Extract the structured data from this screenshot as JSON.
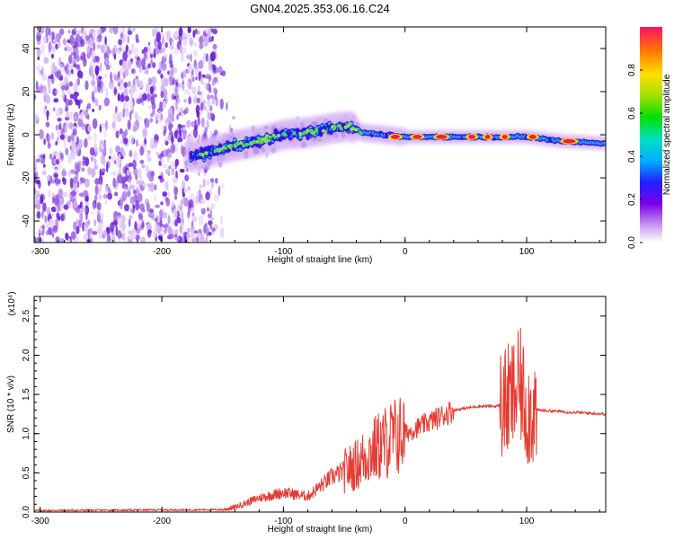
{
  "title": "GN04.2025.353.06.16.C24",
  "chart_data": [
    {
      "type": "heatmap",
      "name": "spectrogram",
      "xlabel": "Height of straight line (km)",
      "ylabel": "Frequency (Hz)",
      "xlim": [
        -305,
        165
      ],
      "ylim": [
        -50,
        50
      ],
      "xticks": [
        -300,
        -200,
        -100,
        0,
        100
      ],
      "yticks": [
        -40,
        -20,
        0,
        20,
        40
      ],
      "ridge": {
        "x": [
          -175,
          -160,
          -140,
          -120,
          -100,
          -80,
          -60,
          -45,
          -35,
          0,
          40,
          80,
          100,
          130,
          165
        ],
        "y": [
          -10,
          -8,
          -5,
          -3,
          0,
          1,
          3,
          4,
          1,
          -1,
          -1,
          -1,
          -1,
          -3,
          -4
        ]
      },
      "noise_region": [
        -305,
        -155
      ],
      "colorbar": {
        "label": "Normalized spectral amplitude",
        "ticks": [
          "0.0",
          "0.2",
          "0.4",
          "0.6",
          "0.8"
        ],
        "range": [
          0,
          1
        ]
      }
    },
    {
      "type": "line",
      "name": "snr",
      "xlabel": "Height of straight line (km)",
      "ylabel": "SNR (10 * v/v)",
      "multiplier": "(x10⁴)",
      "xlim": [
        -305,
        165
      ],
      "ylim": [
        0,
        2.75
      ],
      "xticks": [
        -300,
        -200,
        -100,
        0,
        100
      ],
      "yticks": [
        "0.0",
        "0.5",
        "1.0",
        "1.5",
        "2.0",
        "2.5"
      ],
      "x": [
        -305,
        -150,
        -140,
        -120,
        -100,
        -80,
        -60,
        -40,
        -30,
        -20,
        -10,
        0,
        20,
        40,
        60,
        75,
        85,
        90,
        95,
        100,
        110,
        130,
        165
      ],
      "y": [
        0.02,
        0.03,
        0.06,
        0.18,
        0.25,
        0.2,
        0.45,
        0.6,
        0.75,
        0.85,
        0.95,
        1.0,
        1.15,
        1.3,
        1.35,
        1.35,
        1.4,
        1.5,
        1.6,
        1.3,
        1.3,
        1.28,
        1.25
      ],
      "color": "#e53b32"
    }
  ]
}
